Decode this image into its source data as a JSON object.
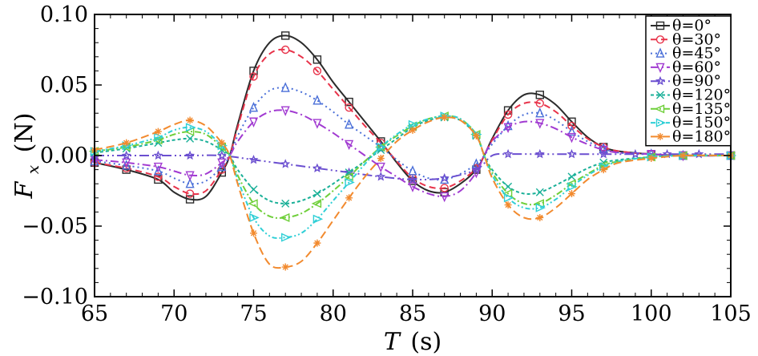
{
  "chart_data": {
    "type": "line",
    "title": "",
    "xlabel": "T (s)",
    "ylabel": "F_x (N)",
    "xlabel_main": "T",
    "xlabel_unit": "(s)",
    "ylabel_main": "F",
    "ylabel_sub": "x",
    "ylabel_unit": "(N)",
    "xlim": [
      65,
      105
    ],
    "ylim": [
      -0.1,
      0.1
    ],
    "xticks": [
      65,
      70,
      75,
      80,
      85,
      90,
      95,
      100,
      105
    ],
    "xtick_labels": [
      "65",
      "70",
      "75",
      "80",
      "85",
      "90",
      "95",
      "100",
      "105"
    ],
    "yticks": [
      -0.1,
      -0.05,
      0.0,
      0.05,
      0.1
    ],
    "ytick_labels": [
      "−0.10",
      "−0.05",
      "0.00",
      "0.05",
      "0.10"
    ],
    "grid": false,
    "legend_position": "top-right",
    "series": [
      {
        "name": "θ=0°",
        "color": "#2b2b2b",
        "dash": "solid",
        "marker": "square",
        "x": [
          65,
          67,
          69,
          70,
          71,
          72,
          73,
          73.5,
          74,
          75,
          76,
          77,
          78,
          79,
          80,
          81,
          82,
          83,
          84,
          85,
          86,
          87,
          88,
          89,
          89.5,
          90,
          91,
          92,
          93,
          94,
          95,
          96,
          97,
          98,
          100,
          102,
          105
        ],
        "y": [
          -0.005,
          -0.01,
          -0.017,
          -0.026,
          -0.031,
          -0.029,
          -0.012,
          0.0,
          0.022,
          0.06,
          0.08,
          0.085,
          0.08,
          0.068,
          0.052,
          0.038,
          0.024,
          0.01,
          -0.005,
          -0.018,
          -0.025,
          -0.026,
          -0.02,
          -0.01,
          0.0,
          0.012,
          0.032,
          0.043,
          0.043,
          0.036,
          0.024,
          0.013,
          0.006,
          0.003,
          0.001,
          0.0,
          0.0
        ]
      },
      {
        "name": "θ=30°",
        "color": "#e8334a",
        "dash": "8,5",
        "marker": "circle",
        "x": [
          65,
          67,
          69,
          70,
          71,
          72,
          73,
          73.5,
          74,
          75,
          76,
          77,
          78,
          79,
          80,
          81,
          82,
          83,
          84,
          85,
          86,
          87,
          88,
          89,
          89.5,
          90,
          91,
          92,
          93,
          94,
          95,
          96,
          97,
          98,
          100,
          102,
          105
        ],
        "y": [
          -0.005,
          -0.009,
          -0.015,
          -0.022,
          -0.027,
          -0.025,
          -0.01,
          0.0,
          0.02,
          0.056,
          0.072,
          0.075,
          0.07,
          0.06,
          0.047,
          0.034,
          0.021,
          0.009,
          -0.004,
          -0.016,
          -0.022,
          -0.023,
          -0.018,
          -0.009,
          0.0,
          0.011,
          0.029,
          0.037,
          0.037,
          0.031,
          0.021,
          0.012,
          0.006,
          0.003,
          0.001,
          0.0,
          0.0
        ]
      },
      {
        "name": "θ=45°",
        "color": "#4a6fd8",
        "dash": "2,4",
        "marker": "triangle-up",
        "x": [
          65,
          67,
          69,
          70,
          71,
          72,
          73,
          73.5,
          74,
          75,
          76,
          77,
          78,
          79,
          80,
          81,
          82,
          83,
          84,
          85,
          86,
          87,
          88,
          89,
          89.5,
          90,
          91,
          92,
          93,
          94,
          95,
          96,
          97,
          98,
          100,
          102,
          105
        ],
        "y": [
          -0.004,
          -0.007,
          -0.011,
          -0.016,
          -0.02,
          -0.018,
          -0.008,
          0.0,
          0.014,
          0.034,
          0.046,
          0.048,
          0.045,
          0.039,
          0.031,
          0.022,
          0.014,
          0.006,
          -0.003,
          -0.011,
          -0.016,
          -0.017,
          -0.013,
          -0.006,
          0.0,
          0.008,
          0.021,
          0.029,
          0.03,
          0.025,
          0.017,
          0.01,
          0.005,
          0.002,
          0.001,
          0.0,
          0.0
        ]
      },
      {
        "name": "θ=60°",
        "color": "#a13ad1",
        "dash": "10,4,2,4",
        "marker": "triangle-down",
        "x": [
          65,
          67,
          69,
          70,
          71,
          72,
          73,
          73.5,
          74,
          75,
          76,
          77,
          78,
          79,
          80,
          81,
          82,
          83,
          84,
          85,
          86,
          87,
          88,
          89,
          89.5,
          90,
          91,
          92,
          93,
          94,
          95,
          96,
          97,
          98,
          100,
          102,
          105
        ],
        "y": [
          -0.003,
          -0.005,
          -0.008,
          -0.011,
          -0.014,
          -0.013,
          -0.005,
          0.0,
          0.01,
          0.024,
          0.031,
          0.032,
          0.029,
          0.023,
          0.016,
          0.008,
          0.0,
          -0.008,
          -0.015,
          -0.022,
          -0.027,
          -0.029,
          -0.025,
          -0.012,
          0.0,
          0.01,
          0.02,
          0.024,
          0.023,
          0.019,
          0.013,
          0.008,
          0.004,
          0.002,
          0.001,
          0.0,
          0.0
        ]
      },
      {
        "name": "θ=90°",
        "color": "#6b4fd0",
        "dash": "12,4,2,4,2,4",
        "marker": "star",
        "x": [
          65,
          67,
          69,
          71,
          73,
          75,
          77,
          79,
          81,
          83,
          85,
          87,
          89,
          90,
          91,
          93,
          95,
          97,
          99,
          101,
          103,
          105
        ],
        "y": [
          0.0,
          0.0,
          0.0,
          0.0,
          0.0,
          -0.003,
          -0.006,
          -0.009,
          -0.012,
          -0.015,
          -0.017,
          -0.016,
          -0.01,
          0.0,
          0.001,
          0.001,
          0.001,
          0.001,
          0.001,
          0.001,
          0.001,
          0.001
        ]
      },
      {
        "name": "θ=120°",
        "color": "#1ab098",
        "dash": "4,3",
        "marker": "x",
        "x": [
          65,
          67,
          69,
          70,
          71,
          72,
          73,
          73.5,
          74,
          75,
          76,
          77,
          78,
          79,
          80,
          81,
          82,
          83,
          84,
          85,
          86,
          87,
          88,
          89,
          89.5,
          90,
          91,
          92,
          93,
          94,
          95,
          96,
          97,
          98,
          100,
          102,
          105
        ],
        "y": [
          0.002,
          0.005,
          0.009,
          0.011,
          0.012,
          0.01,
          0.004,
          0.0,
          -0.01,
          -0.024,
          -0.032,
          -0.034,
          -0.032,
          -0.027,
          -0.02,
          -0.012,
          -0.004,
          0.004,
          0.012,
          0.02,
          0.025,
          0.027,
          0.025,
          0.014,
          0.0,
          -0.01,
          -0.022,
          -0.027,
          -0.026,
          -0.021,
          -0.015,
          -0.009,
          -0.005,
          -0.003,
          -0.001,
          0.0,
          0.0
        ]
      },
      {
        "name": "θ=135°",
        "color": "#6fcf3a",
        "dash": "8,3,2,3",
        "marker": "triangle-left",
        "x": [
          65,
          67,
          69,
          70,
          71,
          72,
          73,
          73.5,
          74,
          75,
          76,
          77,
          78,
          79,
          80,
          81,
          82,
          83,
          84,
          85,
          86,
          87,
          88,
          89,
          89.5,
          90,
          91,
          92,
          93,
          94,
          95,
          96,
          97,
          98,
          100,
          102,
          105
        ],
        "y": [
          0.003,
          0.006,
          0.011,
          0.015,
          0.017,
          0.015,
          0.006,
          0.0,
          -0.014,
          -0.034,
          -0.043,
          -0.044,
          -0.041,
          -0.034,
          -0.025,
          -0.015,
          -0.004,
          0.006,
          0.014,
          0.021,
          0.026,
          0.028,
          0.026,
          0.015,
          0.0,
          -0.012,
          -0.027,
          -0.034,
          -0.034,
          -0.028,
          -0.02,
          -0.013,
          -0.007,
          -0.004,
          -0.001,
          0.0,
          0.0
        ]
      },
      {
        "name": "θ=150°",
        "color": "#2fcfd6",
        "dash": "6,3,2,3,2,3",
        "marker": "triangle-right",
        "x": [
          65,
          67,
          69,
          70,
          71,
          72,
          73,
          73.5,
          74,
          75,
          76,
          77,
          78,
          79,
          80,
          81,
          82,
          83,
          84,
          85,
          86,
          87,
          88,
          89,
          89.5,
          90,
          91,
          92,
          93,
          94,
          95,
          96,
          97,
          98,
          100,
          102,
          105
        ],
        "y": [
          0.003,
          0.007,
          0.013,
          0.018,
          0.02,
          0.017,
          0.007,
          0.0,
          -0.017,
          -0.044,
          -0.057,
          -0.058,
          -0.055,
          -0.045,
          -0.032,
          -0.019,
          -0.006,
          0.006,
          0.015,
          0.022,
          0.026,
          0.028,
          0.026,
          0.015,
          0.0,
          -0.014,
          -0.03,
          -0.037,
          -0.037,
          -0.031,
          -0.022,
          -0.014,
          -0.008,
          -0.004,
          -0.001,
          0.0,
          0.0
        ]
      },
      {
        "name": "θ=180°",
        "color": "#f28a2e",
        "dash": "10,5",
        "marker": "asterisk",
        "x": [
          65,
          67,
          69,
          70,
          71,
          72,
          73,
          73.5,
          74,
          75,
          76,
          77,
          78,
          79,
          80,
          81,
          82,
          83,
          84,
          85,
          86,
          87,
          88,
          89,
          89.5,
          90,
          91,
          92,
          93,
          94,
          95,
          96,
          97,
          98,
          100,
          102,
          105
        ],
        "y": [
          0.004,
          0.009,
          0.017,
          0.022,
          0.025,
          0.021,
          0.009,
          0.0,
          -0.02,
          -0.055,
          -0.077,
          -0.079,
          -0.075,
          -0.062,
          -0.046,
          -0.03,
          -0.015,
          -0.002,
          0.01,
          0.018,
          0.024,
          0.027,
          0.025,
          0.014,
          0.0,
          -0.016,
          -0.035,
          -0.044,
          -0.044,
          -0.037,
          -0.027,
          -0.017,
          -0.01,
          -0.005,
          -0.002,
          0.0,
          0.0
        ]
      }
    ]
  }
}
